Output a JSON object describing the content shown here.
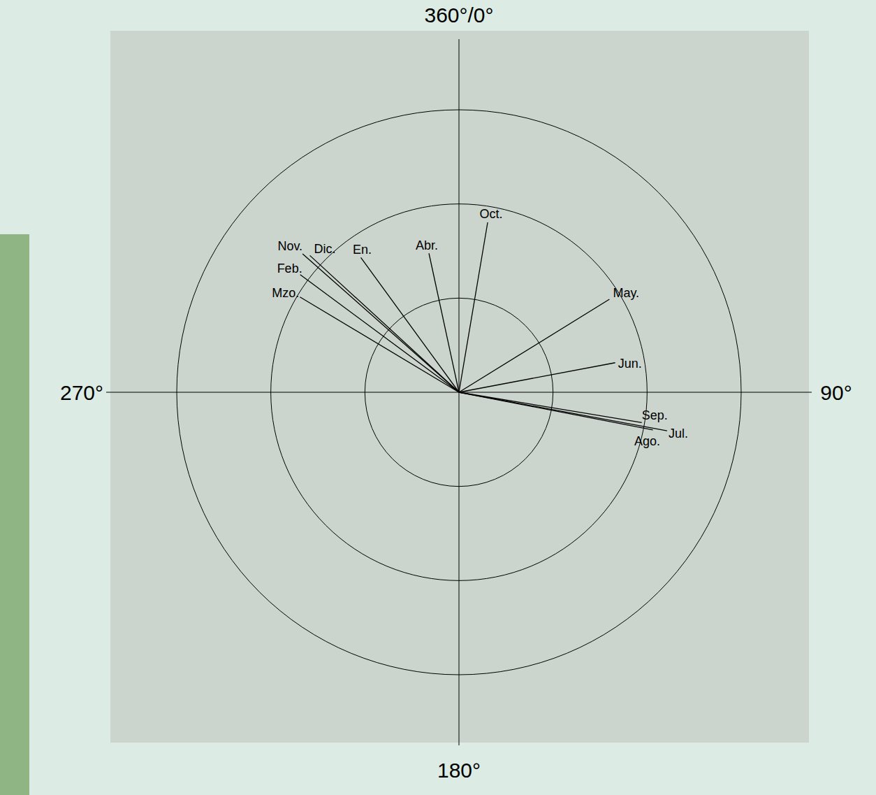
{
  "chart_data": {
    "type": "polar",
    "categories": [
      "En.",
      "Feb.",
      "Mzo.",
      "Abr.",
      "May.",
      "Jun.",
      "Jul.",
      "Ago.",
      "Sep.",
      "Oct.",
      "Nov.",
      "Dic."
    ],
    "angles": [
      323.9,
      306.5,
      300.9,
      347.8,
      58.3,
      79.3,
      100.5,
      101.0,
      99.4,
      9.6,
      311.5,
      312.5
    ],
    "values": [
      1.77,
      2.1,
      1.97,
      1.51,
      1.88,
      1.69,
      2.25,
      2.1,
      1.97,
      1.83,
      2.22,
      2.15
    ],
    "color": "#000000",
    "anglelim": [
      0,
      360
    ],
    "angle_ticks": [
      {
        "value": 0,
        "label": "360°/0°"
      },
      {
        "value": 90,
        "label": "90°"
      },
      {
        "value": 180,
        "label": "180°"
      },
      {
        "value": 270,
        "label": "270°"
      }
    ],
    "rlim": [
      0,
      3
    ],
    "rticks": [
      1,
      2,
      3
    ]
  }
}
